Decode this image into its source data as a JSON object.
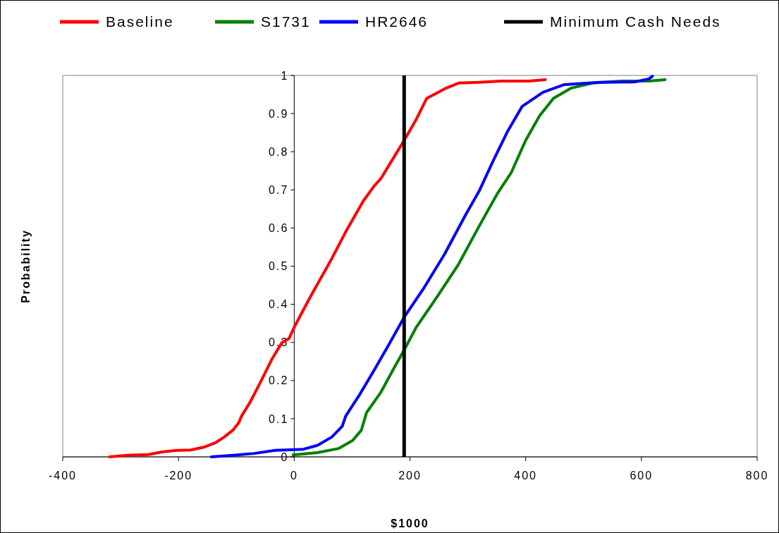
{
  "chart_data": {
    "type": "line",
    "xlabel": "$1000",
    "ylabel": "Probability",
    "xlim": [
      -400,
      800
    ],
    "xticks": [
      -400,
      -200,
      0,
      200,
      400,
      600,
      800
    ],
    "ylim": [
      0,
      1
    ],
    "yticks": [
      0,
      0.1,
      0.2,
      0.3,
      0.4,
      0.5,
      0.6,
      0.7,
      0.8,
      0.9,
      1
    ],
    "grid": false,
    "legend": "top",
    "marker": "none",
    "line_style": "solid",
    "series": [
      {
        "name": "Baseline",
        "color": "#ff0000",
        "x": [
          -319,
          -289,
          -252,
          -228,
          -203,
          -179,
          -155,
          -136,
          -121,
          -106,
          -96,
          -91,
          -76,
          -57,
          -39,
          -21,
          -9,
          0,
          28,
          65,
          89,
          119,
          138,
          150,
          174,
          190,
          211,
          229,
          260,
          284,
          320,
          357,
          406,
          434
        ],
        "values": [
          0,
          0.004,
          0.006,
          0.013,
          0.017,
          0.018,
          0.026,
          0.037,
          0.052,
          0.07,
          0.089,
          0.107,
          0.144,
          0.2,
          0.255,
          0.3,
          0.31,
          0.34,
          0.42,
          0.52,
          0.59,
          0.67,
          0.71,
          0.73,
          0.79,
          0.83,
          0.885,
          0.94,
          0.965,
          0.98,
          0.982,
          0.985,
          0.985,
          0.989
        ]
      },
      {
        "name": "S1731",
        "color": "#008000",
        "x": [
          -2,
          40,
          77,
          101,
          116,
          125,
          150,
          174,
          190,
          211,
          247,
          284,
          320,
          351,
          375,
          400,
          424,
          448,
          479,
          516,
          565,
          613,
          641
        ],
        "values": [
          0.005,
          0.011,
          0.022,
          0.043,
          0.07,
          0.116,
          0.17,
          0.237,
          0.28,
          0.34,
          0.42,
          0.505,
          0.606,
          0.69,
          0.745,
          0.83,
          0.894,
          0.94,
          0.967,
          0.98,
          0.985,
          0.985,
          0.989
        ]
      },
      {
        "name": "HR2646",
        "color": "#0000ff",
        "x": [
          -143,
          -106,
          -69,
          -33,
          16,
          40,
          65,
          83,
          89,
          113,
          138,
          162,
          190,
          223,
          260,
          296,
          320,
          345,
          369,
          394,
          430,
          467,
          528,
          588,
          613,
          619
        ],
        "values": [
          0,
          0.004,
          0.009,
          0.017,
          0.02,
          0.03,
          0.052,
          0.08,
          0.107,
          0.163,
          0.227,
          0.29,
          0.366,
          0.44,
          0.532,
          0.634,
          0.698,
          0.78,
          0.854,
          0.919,
          0.956,
          0.976,
          0.982,
          0.983,
          0.991,
          0.998
        ]
      }
    ],
    "ref_lines": [
      {
        "axis": "x",
        "value": 190,
        "label": "Minimum Cash Needs",
        "color": "#000000"
      }
    ]
  }
}
